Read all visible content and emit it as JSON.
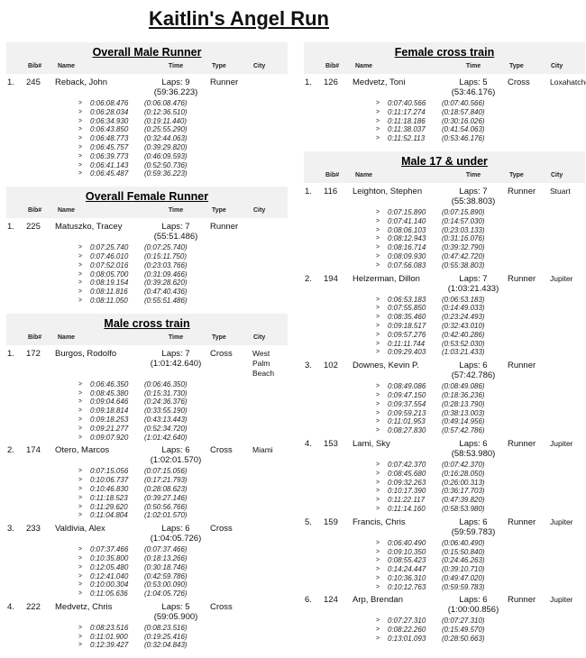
{
  "page": {
    "title": "Kaitlin's Angel Run"
  },
  "lap_marker": ">",
  "headers": {
    "bib": "Bib#",
    "name": "Name",
    "time": "Time",
    "type": "Type",
    "city": "City"
  },
  "columns": [
    {
      "sections": [
        {
          "title": "Overall Male Runner",
          "entries": [
            {
              "pos": "1.",
              "bib": "245",
              "name": "Reback, John",
              "laps": "Laps: 9",
              "total": "(59:36.223)",
              "type": "Runner",
              "city": "",
              "lap_times": [
                {
                  "split": "0:06:08.476",
                  "cum": "(0:06:08.476)"
                },
                {
                  "split": "0:06:28.034",
                  "cum": "(0:12:36.510)"
                },
                {
                  "split": "0:06:34.930",
                  "cum": "(0:19:11.440)"
                },
                {
                  "split": "0:06:43.850",
                  "cum": "(0:25:55.290)"
                },
                {
                  "split": "0:06:48.773",
                  "cum": "(0:32:44.063)"
                },
                {
                  "split": "0:06:45.757",
                  "cum": "(0:39:29.820)"
                },
                {
                  "split": "0:06:39.773",
                  "cum": "(0:46:09.593)"
                },
                {
                  "split": "0:06:41.143",
                  "cum": "(0:52:50.736)"
                },
                {
                  "split": "0:06:45.487",
                  "cum": "(0:59:36.223)"
                }
              ]
            }
          ]
        },
        {
          "title": "Overall Female Runner",
          "entries": [
            {
              "pos": "1.",
              "bib": "225",
              "name": "Matuszko, Tracey",
              "laps": "Laps: 7",
              "total": "(55:51.486)",
              "type": "Runner",
              "city": "",
              "lap_times": [
                {
                  "split": "0:07:25.740",
                  "cum": "(0:07:25.740)"
                },
                {
                  "split": "0:07:46.010",
                  "cum": "(0:15:11.750)"
                },
                {
                  "split": "0:07:52.016",
                  "cum": "(0:23:03.766)"
                },
                {
                  "split": "0:08:05.700",
                  "cum": "(0:31:09.466)"
                },
                {
                  "split": "0:08:19.154",
                  "cum": "(0:39:28.620)"
                },
                {
                  "split": "0:08:11.816",
                  "cum": "(0:47:40.436)"
                },
                {
                  "split": "0:08:11.050",
                  "cum": "(0:55:51.486)"
                }
              ]
            }
          ]
        },
        {
          "title": "Male cross train",
          "entries": [
            {
              "pos": "1.",
              "bib": "172",
              "name": "Burgos, Rodolfo",
              "laps": "Laps: 7",
              "total": "(1:01:42.640)",
              "type": "Cross",
              "city": "West Palm Beach",
              "lap_times": [
                {
                  "split": "0:06:46.350",
                  "cum": "(0:06:46.350)"
                },
                {
                  "split": "0:08:45.380",
                  "cum": "(0:15:31.730)"
                },
                {
                  "split": "0:09:04.646",
                  "cum": "(0:24:36.376)"
                },
                {
                  "split": "0:09:18.814",
                  "cum": "(0:33:55.190)"
                },
                {
                  "split": "0:09:18.253",
                  "cum": "(0:43:13.443)"
                },
                {
                  "split": "0:09:21.277",
                  "cum": "(0:52:34.720)"
                },
                {
                  "split": "0:09:07.920",
                  "cum": "(1:01:42.640)"
                }
              ]
            },
            {
              "pos": "2.",
              "bib": "174",
              "name": "Otero, Marcos",
              "laps": "Laps: 6",
              "total": "(1:02:01.570)",
              "type": "Cross",
              "city": "Miami",
              "lap_times": [
                {
                  "split": "0:07:15.056",
                  "cum": "(0:07:15.056)"
                },
                {
                  "split": "0:10:06.737",
                  "cum": "(0:17:21.793)"
                },
                {
                  "split": "0:10:46.830",
                  "cum": "(0:28:08.623)"
                },
                {
                  "split": "0:11:18.523",
                  "cum": "(0:39:27.146)"
                },
                {
                  "split": "0:11:29.620",
                  "cum": "(0:50:56.766)"
                },
                {
                  "split": "0:11:04.804",
                  "cum": "(1:02:01.570)"
                }
              ]
            },
            {
              "pos": "3.",
              "bib": "233",
              "name": "Valdivia, Alex",
              "laps": "Laps: 6",
              "total": "(1:04:05.726)",
              "type": "Cross",
              "city": "",
              "lap_times": [
                {
                  "split": "0:07:37.466",
                  "cum": "(0:07:37.466)"
                },
                {
                  "split": "0:10:35.800",
                  "cum": "(0:18:13.266)"
                },
                {
                  "split": "0:12:05.480",
                  "cum": "(0:30:18.746)"
                },
                {
                  "split": "0:12:41.040",
                  "cum": "(0:42:59.786)"
                },
                {
                  "split": "0:10:00.304",
                  "cum": "(0:53:00.090)"
                },
                {
                  "split": "0:11:05.636",
                  "cum": "(1:04:05.726)"
                }
              ]
            },
            {
              "pos": "4.",
              "bib": "222",
              "name": "Medvetz, Chris",
              "laps": "Laps: 5",
              "total": "(59:05.900)",
              "type": "Cross",
              "city": "",
              "lap_times": [
                {
                  "split": "0:08:23.516",
                  "cum": "(0:08:23.516)"
                },
                {
                  "split": "0:11:01.900",
                  "cum": "(0:19:25.416)"
                },
                {
                  "split": "0:12:39.427",
                  "cum": "(0:32:04.843)"
                }
              ]
            }
          ]
        }
      ]
    },
    {
      "sections": [
        {
          "title": "Female cross train",
          "entries": [
            {
              "pos": "1.",
              "bib": "126",
              "name": "Medvetz, Toni",
              "laps": "Laps: 5",
              "total": "(53:46.176)",
              "type": "Cross",
              "city": "Loxahatchee",
              "lap_times": [
                {
                  "split": "0:07:40.566",
                  "cum": "(0:07:40.566)"
                },
                {
                  "split": "0:11:17.274",
                  "cum": "(0:18:57.840)"
                },
                {
                  "split": "0:11:18.186",
                  "cum": "(0:30:16.026)"
                },
                {
                  "split": "0:11:38.037",
                  "cum": "(0:41:54.063)"
                },
                {
                  "split": "0:11:52.113",
                  "cum": "(0:53:46.176)"
                }
              ]
            }
          ]
        },
        {
          "title": "Male 17 & under",
          "entries": [
            {
              "pos": "1.",
              "bib": "116",
              "name": "Leighton, Stephen",
              "laps": "Laps: 7",
              "total": "(55:38.803)",
              "type": "Runner",
              "city": "Stuart",
              "lap_times": [
                {
                  "split": "0:07:15.890",
                  "cum": "(0:07:15.890)"
                },
                {
                  "split": "0:07:41.140",
                  "cum": "(0:14:57.030)"
                },
                {
                  "split": "0:08:06.103",
                  "cum": "(0:23:03.133)"
                },
                {
                  "split": "0:08:12.943",
                  "cum": "(0:31:16.076)"
                },
                {
                  "split": "0:08:16.714",
                  "cum": "(0:39:32.790)"
                },
                {
                  "split": "0:08:09.930",
                  "cum": "(0:47:42.720)"
                },
                {
                  "split": "0:07:56.083",
                  "cum": "(0:55:38.803)"
                }
              ]
            },
            {
              "pos": "2.",
              "bib": "194",
              "name": "Helzerman, Dillon",
              "laps": "Laps: 7",
              "total": "(1:03:21.433)",
              "type": "Runner",
              "city": "Jupiter",
              "lap_times": [
                {
                  "split": "0:06:53.183",
                  "cum": "(0:06:53.183)"
                },
                {
                  "split": "0:07:55.850",
                  "cum": "(0:14:49.033)"
                },
                {
                  "split": "0:08:35.460",
                  "cum": "(0:23:24.493)"
                },
                {
                  "split": "0:09:18.517",
                  "cum": "(0:32:43.010)"
                },
                {
                  "split": "0:09:57.276",
                  "cum": "(0:42:40.286)"
                },
                {
                  "split": "0:11:11.744",
                  "cum": "(0:53:52.030)"
                },
                {
                  "split": "0:09:29.403",
                  "cum": "(1:03:21.433)"
                }
              ]
            },
            {
              "pos": "3.",
              "bib": "102",
              "name": "Downes, Kevin P.",
              "laps": "Laps: 6",
              "total": "(57:42.786)",
              "type": "Runner",
              "city": "",
              "lap_times": [
                {
                  "split": "0:08:49.086",
                  "cum": "(0:08:49.086)"
                },
                {
                  "split": "0:09:47.150",
                  "cum": "(0:18:36.236)"
                },
                {
                  "split": "0:09:37.554",
                  "cum": "(0:28:13.790)"
                },
                {
                  "split": "0:09:59.213",
                  "cum": "(0:38:13.003)"
                },
                {
                  "split": "0:11:01.953",
                  "cum": "(0:49:14.956)"
                },
                {
                  "split": "0:08:27.830",
                  "cum": "(0:57:42.786)"
                }
              ]
            },
            {
              "pos": "4.",
              "bib": "153",
              "name": "Lami, Sky",
              "laps": "Laps: 6",
              "total": "(58:53.980)",
              "type": "Runner",
              "city": "Jupiter",
              "lap_times": [
                {
                  "split": "0:07:42.370",
                  "cum": "(0:07:42.370)"
                },
                {
                  "split": "0:08:45.680",
                  "cum": "(0:16:28.050)"
                },
                {
                  "split": "0:09:32.263",
                  "cum": "(0:26:00.313)"
                },
                {
                  "split": "0:10:17.390",
                  "cum": "(0:36:17.703)"
                },
                {
                  "split": "0:11:22.117",
                  "cum": "(0:47:39.820)"
                },
                {
                  "split": "0:11:14.160",
                  "cum": "(0:58:53.980)"
                }
              ]
            },
            {
              "pos": "5.",
              "bib": "159",
              "name": "Francis, Chris",
              "laps": "Laps: 6",
              "total": "(59:59.783)",
              "type": "Runner",
              "city": "Jupiter",
              "lap_times": [
                {
                  "split": "0:06:40.490",
                  "cum": "(0:06:40.490)"
                },
                {
                  "split": "0:09:10.350",
                  "cum": "(0:15:50.840)"
                },
                {
                  "split": "0:08:55.423",
                  "cum": "(0:24:46.263)"
                },
                {
                  "split": "0:14:24.447",
                  "cum": "(0:39:10.710)"
                },
                {
                  "split": "0:10:36.310",
                  "cum": "(0:49:47.020)"
                },
                {
                  "split": "0:10:12.763",
                  "cum": "(0:59:59.783)"
                }
              ]
            },
            {
              "pos": "6.",
              "bib": "124",
              "name": "Arp, Brendan",
              "laps": "Laps: 6",
              "total": "(1:00:00.856)",
              "type": "Runner",
              "city": "Jupiter",
              "lap_times": [
                {
                  "split": "0:07:27.310",
                  "cum": "(0:07:27.310)"
                },
                {
                  "split": "0:08:22.260",
                  "cum": "(0:15:49.570)"
                },
                {
                  "split": "0:13:01.093",
                  "cum": "(0:28:50.663)"
                }
              ]
            }
          ]
        }
      ]
    }
  ]
}
